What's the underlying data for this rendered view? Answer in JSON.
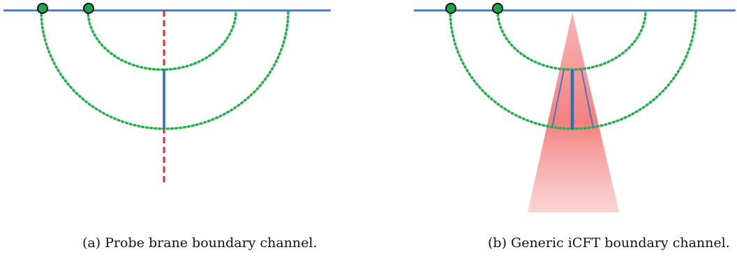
{
  "panels": [
    {
      "id": "a",
      "caption": "(a) Probe brane boundary channel."
    },
    {
      "id": "b",
      "caption": "(b) Generic iCFT boundary channel."
    }
  ],
  "colors": {
    "boundary_line": "#4a78c0",
    "geodesic_dotted": "#22b04a",
    "marker_fill": "#1fa34a",
    "marker_stroke": "#111111",
    "brane_dashed": "#e0302a",
    "segment": "#2a6fb5",
    "wedge": "#f26a6a"
  }
}
